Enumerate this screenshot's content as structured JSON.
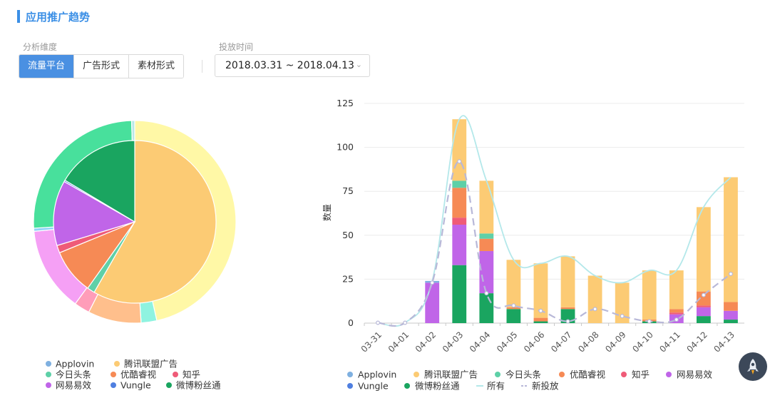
{
  "header": {
    "title": "应用推广趋势"
  },
  "filters": {
    "dimension_label": "分析维度",
    "dimension_options": [
      {
        "label": "流量平台",
        "active": true
      },
      {
        "label": "广告形式",
        "active": false
      },
      {
        "label": "素材形式",
        "active": false
      }
    ],
    "time_label": "投放时间",
    "time_value": "2018.03.31 ~ 2018.04.13"
  },
  "colors": {
    "Applovin": "#7fb0e0",
    "腾讯联盟广告": "#fccb74",
    "今日头条": "#5ed0a7",
    "优酷睿视": "#f68a55",
    "知乎": "#ef5b78",
    "网易易效": "#c065e8",
    "Vungle": "#4f7fe0",
    "微博粉丝通": "#1aa560",
    "所有": "#b4e8ea",
    "新投放": "#b8b8d8"
  },
  "pie_legend": [
    [
      "Applovin",
      "腾讯联盟广告"
    ],
    [
      "今日头条",
      "优酷睿视",
      "知乎"
    ],
    [
      "网易易效",
      "Vungle",
      "微博粉丝通"
    ]
  ],
  "bar_legend": [
    [
      "Applovin",
      "腾讯联盟广告",
      "今日头条",
      "优酷睿视",
      "知乎",
      "网易易效"
    ],
    [
      "Vungle",
      "微博粉丝通",
      "所有",
      "新投放"
    ]
  ],
  "chart_data": [
    {
      "type": "pie",
      "inner_series": [
        {
          "name": "腾讯联盟广告",
          "value": 58.5
        },
        {
          "name": "今日头条",
          "value": 1.5
        },
        {
          "name": "优酷睿视",
          "value": 9
        },
        {
          "name": "知乎",
          "value": 1.5
        },
        {
          "name": "网易易效",
          "value": 13
        },
        {
          "name": "Vungle",
          "value": 0.3
        },
        {
          "name": "微博粉丝通",
          "value": 16.5
        }
      ],
      "outer_series": [
        {
          "name": "腾讯联盟广告",
          "color": "#fff8a6",
          "value": 46.5
        },
        {
          "name": "今日头条",
          "color": "#8ff3e0",
          "value": 2.5
        },
        {
          "name": "优酷睿视",
          "color": "#ffbf8c",
          "value": 8.5
        },
        {
          "name": "知乎",
          "color": "#ff9db9",
          "value": 2.5
        },
        {
          "name": "网易易效",
          "color": "#f5a0f5",
          "value": 13.5
        },
        {
          "name": "Vungle",
          "color": "#8fd3f8",
          "value": 0.5
        },
        {
          "name": "微博粉丝通",
          "color": "#48e09c",
          "value": 25.5
        },
        {
          "name": "Applovin",
          "color": "#b8e8e8",
          "value": 0.5
        }
      ]
    },
    {
      "type": "bar",
      "stacked": true,
      "categories": [
        "03-31",
        "04-01",
        "04-02",
        "04-03",
        "04-04",
        "04-05",
        "04-06",
        "04-07",
        "04-08",
        "04-09",
        "04-10",
        "04-11",
        "04-12",
        "04-13"
      ],
      "ylabel": "数量",
      "ylim": [
        0,
        125
      ],
      "yticks": [
        0,
        25,
        50,
        75,
        100,
        125
      ],
      "series": [
        {
          "name": "微博粉丝通",
          "values": [
            0,
            0,
            0,
            33,
            17,
            8,
            1,
            8,
            0,
            0,
            1,
            0,
            4,
            2
          ]
        },
        {
          "name": "网易易效",
          "values": [
            0,
            0,
            23,
            23,
            24,
            0,
            0,
            0,
            0,
            0,
            0,
            5,
            5,
            5
          ]
        },
        {
          "name": "知乎",
          "values": [
            0,
            0,
            0,
            4,
            0,
            0,
            0,
            0,
            0,
            0,
            0,
            1,
            1,
            0
          ]
        },
        {
          "name": "优酷睿视",
          "values": [
            0,
            0,
            0,
            17,
            7,
            1,
            2,
            1,
            0,
            0,
            1,
            2,
            8,
            5
          ]
        },
        {
          "name": "今日头条",
          "values": [
            0,
            0,
            0,
            4,
            3,
            0,
            0,
            0,
            0,
            0,
            0,
            0,
            0,
            0
          ]
        },
        {
          "name": "腾讯联盟广告",
          "values": [
            0,
            0,
            0,
            35,
            30,
            27,
            31,
            29,
            27,
            23,
            28,
            22,
            48,
            71
          ]
        },
        {
          "name": "Applovin",
          "values": [
            0,
            0,
            1,
            0,
            0,
            0,
            0,
            0,
            0,
            0,
            0,
            0,
            0,
            0
          ]
        }
      ],
      "lines": [
        {
          "name": "所有",
          "style": "smooth",
          "values": [
            0,
            0,
            24,
            116,
            81,
            36,
            34,
            38,
            27,
            23,
            30,
            30,
            66,
            83
          ]
        },
        {
          "name": "新投放",
          "style": "dashed",
          "values": [
            0,
            0,
            23,
            92,
            17,
            10,
            7,
            1,
            8,
            4,
            1,
            2,
            16,
            28
          ]
        }
      ],
      "grid": true,
      "legend": "bottom"
    }
  ]
}
